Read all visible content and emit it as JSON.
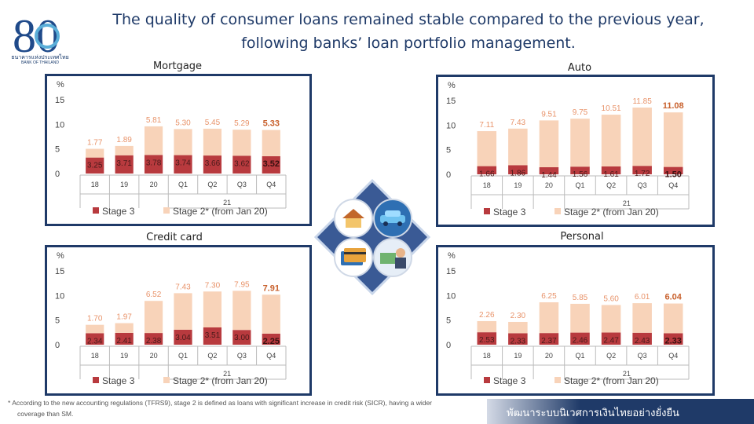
{
  "header": {
    "title_line1": "The quality of consumer loans remained stable compared to the previous year,",
    "title_line2": "following banks’ loan portfolio management.",
    "logo_number": "80",
    "logo_thai": "ธนาคารแห่งประเทศไทย",
    "logo_english": "BANK OF THAILAND"
  },
  "footer": {
    "footnote_line1": "*  According to the new accounting regulations (TFRS9), stage 2 is defined as loans with significant increase in credit risk (SICR), having a wider",
    "footnote_line2": "coverage than SM.",
    "banner_text": "พัฒนาระบบนิเวศการเงินไทยอย่างยั่งยืน"
  },
  "colors": {
    "stage3": "#b83a3e",
    "stage2": "#f8d3b9",
    "stage2_label": "#e8936a",
    "frame": "#1f3a68"
  },
  "chart_data": [
    {
      "type": "bar",
      "title": "Mortgage",
      "ylabel": "%",
      "ylim": [
        0,
        15
      ],
      "yticks": [
        "0",
        "5",
        "10",
        "15"
      ],
      "categories": [
        "18",
        "19",
        "20",
        "Q1",
        "Q2",
        "Q3",
        "Q4"
      ],
      "year_label": "21",
      "stacked": true,
      "series": [
        {
          "name": "Stage 3",
          "values": [
            3.25,
            3.71,
            3.78,
            3.74,
            3.66,
            3.62,
            3.52
          ],
          "labels": [
            "3.25",
            "3.71",
            "3.78",
            "3.74",
            "3.66",
            "3.62",
            "3.52"
          ]
        },
        {
          "name": "Stage 2* (from Jan 20)",
          "values": [
            1.77,
            1.89,
            5.81,
            5.3,
            5.45,
            5.29,
            5.33
          ],
          "labels": [
            "1.77",
            "1.89",
            "5.81",
            "5.30",
            "5.45",
            "5.29",
            "5.33"
          ]
        }
      ]
    },
    {
      "type": "bar",
      "title": "Auto",
      "ylabel": "%",
      "ylim": [
        0,
        15
      ],
      "yticks": [
        "0",
        "5",
        "10",
        "15"
      ],
      "categories": [
        "18",
        "19",
        "20",
        "Q1",
        "Q2",
        "Q3",
        "Q4"
      ],
      "year_label": "21",
      "stacked": true,
      "series": [
        {
          "name": "Stage 3",
          "values": [
            1.66,
            1.86,
            1.44,
            1.56,
            1.61,
            1.72,
            1.5
          ],
          "labels": [
            "1.66",
            "1.86",
            "1.44",
            "1.56",
            "1.61",
            "1.72",
            "1.50"
          ]
        },
        {
          "name": "Stage 2* (from Jan 20)",
          "values": [
            7.11,
            7.43,
            9.51,
            9.75,
            10.51,
            11.85,
            11.08
          ],
          "labels": [
            "7.11",
            "7.43",
            "9.51",
            "9.75",
            "10.51",
            "11.85",
            "11.08"
          ]
        }
      ]
    },
    {
      "type": "bar",
      "title": "Credit card",
      "ylabel": "%",
      "ylim": [
        0,
        15
      ],
      "yticks": [
        "0",
        "5",
        "10",
        "15"
      ],
      "categories": [
        "18",
        "19",
        "20",
        "Q1",
        "Q2",
        "Q3",
        "Q4"
      ],
      "year_label": "21",
      "stacked": true,
      "series": [
        {
          "name": "Stage 3",
          "values": [
            2.34,
            2.41,
            2.38,
            3.04,
            3.51,
            3.0,
            2.25
          ],
          "labels": [
            "2.34",
            "2.41",
            "2.38",
            "3.04",
            "3.51",
            "3.00",
            "2.25"
          ]
        },
        {
          "name": "Stage 2* (from Jan 20)",
          "values": [
            1.7,
            1.97,
            6.52,
            7.43,
            7.3,
            7.95,
            7.91
          ],
          "labels": [
            "1.70",
            "1.97",
            "6.52",
            "7.43",
            "7.30",
            "7.95",
            "7.91"
          ]
        }
      ]
    },
    {
      "type": "bar",
      "title": "Personal",
      "ylabel": "%",
      "ylim": [
        0,
        15
      ],
      "yticks": [
        "0",
        "5",
        "10",
        "15"
      ],
      "categories": [
        "18",
        "19",
        "20",
        "Q1",
        "Q2",
        "Q3",
        "Q4"
      ],
      "year_label": "21",
      "stacked": true,
      "series": [
        {
          "name": "Stage 3",
          "values": [
            2.53,
            2.33,
            2.37,
            2.46,
            2.47,
            2.43,
            2.33
          ],
          "labels": [
            "2.53",
            "2.33",
            "2.37",
            "2.46",
            "2.47",
            "2.43",
            "2.33"
          ]
        },
        {
          "name": "Stage 2* (from Jan 20)",
          "values": [
            2.26,
            2.3,
            6.25,
            5.85,
            5.6,
            6.01,
            6.04
          ],
          "labels": [
            "2.26",
            "2.30",
            "6.25",
            "5.85",
            "5.60",
            "6.01",
            "6.04"
          ]
        }
      ]
    }
  ],
  "center_graphic": {
    "icons": [
      "house-icon",
      "car-icon",
      "credit-card-icon",
      "money-person-icon"
    ]
  }
}
